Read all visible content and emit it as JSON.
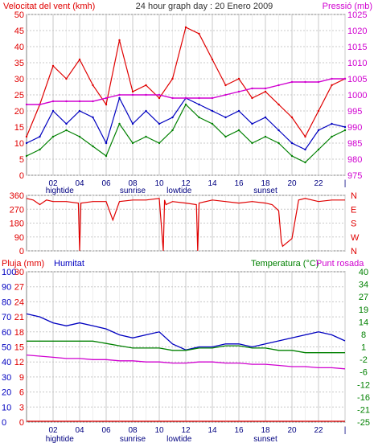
{
  "header": {
    "left_title": "Velocitat del vent (kmh)",
    "center_title": "24 hour graph day : 20 Enero 2009",
    "right_title": "Pressió (mb)"
  },
  "colors": {
    "wind": "#e00000",
    "gust_green": "#008000",
    "avg_blue": "#0000c0",
    "pressure": "#d000d0",
    "grid": "#c8c8c8",
    "frame": "#808080",
    "direction": "#e00000",
    "humidity": "#0000c0",
    "temperature": "#008000",
    "dewpoint": "#d000d0",
    "rain": "#e00000"
  },
  "hour_ticks": [
    "02",
    "04",
    "06",
    "08",
    "10",
    "12",
    "14",
    "16",
    "18",
    "20",
    "22",
    "|"
  ],
  "events_top": [
    {
      "label": "hightide",
      "hour": 2.5
    },
    {
      "label": "sunrise",
      "hour": 8.0
    },
    {
      "label": "lowtide",
      "hour": 11.5
    },
    {
      "label": "sunset",
      "hour": 18.0
    }
  ],
  "events_bottom": [
    {
      "label": "hightide",
      "hour": 2.5
    },
    {
      "label": "sunrise",
      "hour": 8.0
    },
    {
      "label": "lowtide",
      "hour": 11.5
    },
    {
      "label": "sunset",
      "hour": 18.0
    }
  ],
  "chart_data": [
    {
      "type": "line",
      "title": "24 hour graph day : 20 Enero 2009",
      "ylabel": "Velocitat del vent (kmh)",
      "y2label": "Pressió (mb)",
      "xlim": [
        0,
        24
      ],
      "ylim": [
        0,
        50
      ],
      "y2lim": [
        975,
        1025
      ],
      "yticks": [
        0,
        5,
        10,
        15,
        20,
        25,
        30,
        35,
        40,
        45,
        50
      ],
      "y2ticks": [
        975,
        980,
        985,
        990,
        995,
        1000,
        1005,
        1010,
        1015,
        1020,
        1025
      ],
      "x": [
        0,
        1,
        2,
        3,
        4,
        5,
        6,
        7,
        8,
        9,
        10,
        11,
        12,
        13,
        14,
        15,
        16,
        17,
        18,
        19,
        20,
        21,
        22,
        23,
        24
      ],
      "series": [
        {
          "name": "gust",
          "axis": "left",
          "values": [
            12,
            22,
            34,
            30,
            36,
            28,
            22,
            42,
            26,
            28,
            24,
            30,
            46,
            44,
            36,
            28,
            30,
            24,
            26,
            22,
            18,
            12,
            20,
            28,
            30
          ]
        },
        {
          "name": "wind",
          "axis": "left",
          "values": [
            6,
            8,
            12,
            14,
            12,
            9,
            6,
            16,
            10,
            12,
            10,
            14,
            22,
            18,
            16,
            12,
            14,
            10,
            12,
            10,
            6,
            4,
            8,
            12,
            14
          ]
        },
        {
          "name": "average",
          "axis": "left",
          "values": [
            10,
            12,
            20,
            16,
            20,
            18,
            10,
            24,
            16,
            20,
            16,
            18,
            24,
            22,
            20,
            18,
            20,
            16,
            18,
            14,
            10,
            8,
            14,
            16,
            15
          ]
        },
        {
          "name": "pressure",
          "axis": "right",
          "values": [
            997,
            997,
            998,
            998,
            998,
            998,
            999,
            1000,
            1000,
            1000,
            1000,
            999,
            999,
            999,
            999,
            1000,
            1001,
            1002,
            1002,
            1003,
            1004,
            1004,
            1004,
            1005,
            1005
          ]
        }
      ]
    },
    {
      "type": "line",
      "ylim": [
        0,
        360
      ],
      "yticks": [
        0,
        90,
        180,
        270,
        360
      ],
      "y2ticks": [
        "N",
        "W",
        "S",
        "E",
        "N"
      ],
      "xlim": [
        0,
        24
      ],
      "series": [
        {
          "name": "direction",
          "x": [
            0,
            0.5,
            1,
            1.5,
            2,
            3,
            3.9,
            4,
            4.1,
            5,
            6,
            6.5,
            7,
            8,
            9,
            10,
            10.3,
            10.4,
            10.5,
            11,
            12,
            12.8,
            12.9,
            13,
            14,
            15,
            16,
            17,
            18,
            18.5,
            19,
            19.2,
            19.3,
            20,
            20.5,
            21,
            22,
            23,
            24
          ],
          "values": [
            340,
            330,
            300,
            330,
            320,
            320,
            310,
            0,
            310,
            320,
            320,
            200,
            320,
            330,
            330,
            340,
            0,
            330,
            300,
            320,
            310,
            300,
            0,
            310,
            330,
            320,
            310,
            320,
            310,
            300,
            260,
            60,
            30,
            80,
            330,
            340,
            320,
            330,
            330
          ]
        }
      ]
    },
    {
      "type": "line",
      "ylabel": "Pluja (mm)",
      "ylabel2": "Humitat",
      "y2label": "Temperatura (°C)",
      "y2label_b": "Punt rosada",
      "xlim": [
        0,
        24
      ],
      "rain_ticks": [
        0,
        3,
        6,
        9,
        12,
        15,
        18,
        21,
        24,
        27,
        30
      ],
      "humidity_ticks": [
        0,
        10,
        20,
        30,
        40,
        50,
        60,
        70,
        80,
        90,
        100
      ],
      "temp_ticks": [
        -25,
        -21,
        -16,
        -12,
        -6,
        -2,
        1,
        8,
        14,
        19,
        27,
        34,
        40
      ],
      "series": [
        {
          "name": "humidity",
          "values": [
            72,
            70,
            66,
            64,
            66,
            64,
            62,
            58,
            56,
            58,
            60,
            52,
            48,
            50,
            50,
            52,
            52,
            50,
            52,
            54,
            56,
            58,
            60,
            58,
            54
          ]
        },
        {
          "name": "temperature",
          "axis": "right",
          "values": [
            10,
            10,
            10,
            10,
            10,
            10,
            9,
            8,
            7,
            7,
            7,
            6,
            6,
            7,
            7,
            8,
            8,
            7,
            7,
            6,
            6,
            5,
            5,
            5,
            5
          ]
        },
        {
          "name": "dewpoint",
          "axis": "right",
          "values": [
            4,
            3.5,
            3,
            2.5,
            2.5,
            2,
            2,
            1.5,
            1.5,
            1,
            1,
            0.5,
            0.5,
            1,
            1,
            0.5,
            0.5,
            0,
            0,
            -0.5,
            -1,
            -1,
            -1.5,
            -1.5,
            -2
          ]
        },
        {
          "name": "rain",
          "values": [
            0,
            0,
            0,
            0,
            0,
            0,
            0,
            0,
            0,
            0,
            0,
            0,
            0,
            0,
            0,
            0,
            0,
            0,
            0,
            0,
            0,
            0,
            0,
            0,
            0
          ]
        }
      ]
    }
  ]
}
